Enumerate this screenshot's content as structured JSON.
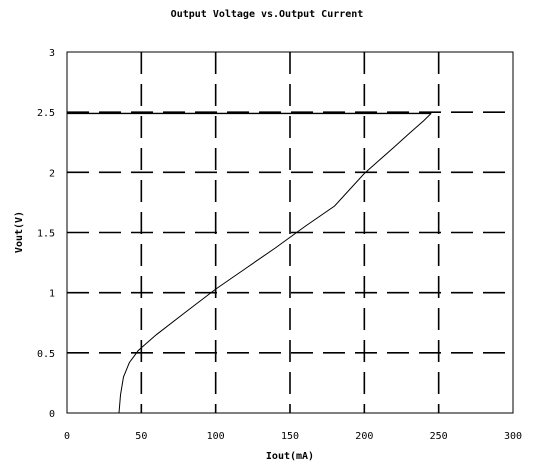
{
  "chart_data": {
    "type": "line",
    "title": "Output Voltage vs.Output Current",
    "xlabel": "Iout(mA)",
    "ylabel": "Vout(V)",
    "xlim": [
      0,
      300
    ],
    "ylim": [
      0,
      3
    ],
    "xticks": [
      0,
      50,
      100,
      150,
      200,
      250,
      300
    ],
    "yticks": [
      0,
      0.5,
      1,
      1.5,
      2,
      2.5,
      3
    ],
    "xtick_labels": [
      "0",
      "50",
      "100",
      "150",
      "200",
      "250",
      "300"
    ],
    "ytick_labels": [
      "0",
      "0.5",
      "1",
      "1.5",
      "2",
      "2.5",
      "3"
    ],
    "grid": true,
    "series": [
      {
        "x": [
          35,
          36,
          38,
          42,
          48,
          60,
          80,
          100,
          120,
          140,
          160,
          180,
          200,
          210,
          220,
          230,
          240,
          245
        ],
        "y": [
          0.0,
          0.15,
          0.3,
          0.42,
          0.52,
          0.65,
          0.84,
          1.03,
          1.2,
          1.37,
          1.55,
          1.72,
          1.99,
          2.1,
          2.21,
          2.32,
          2.43,
          2.49
        ]
      },
      {
        "x": [
          0,
          245
        ],
        "y": [
          2.49,
          2.49
        ]
      }
    ]
  }
}
